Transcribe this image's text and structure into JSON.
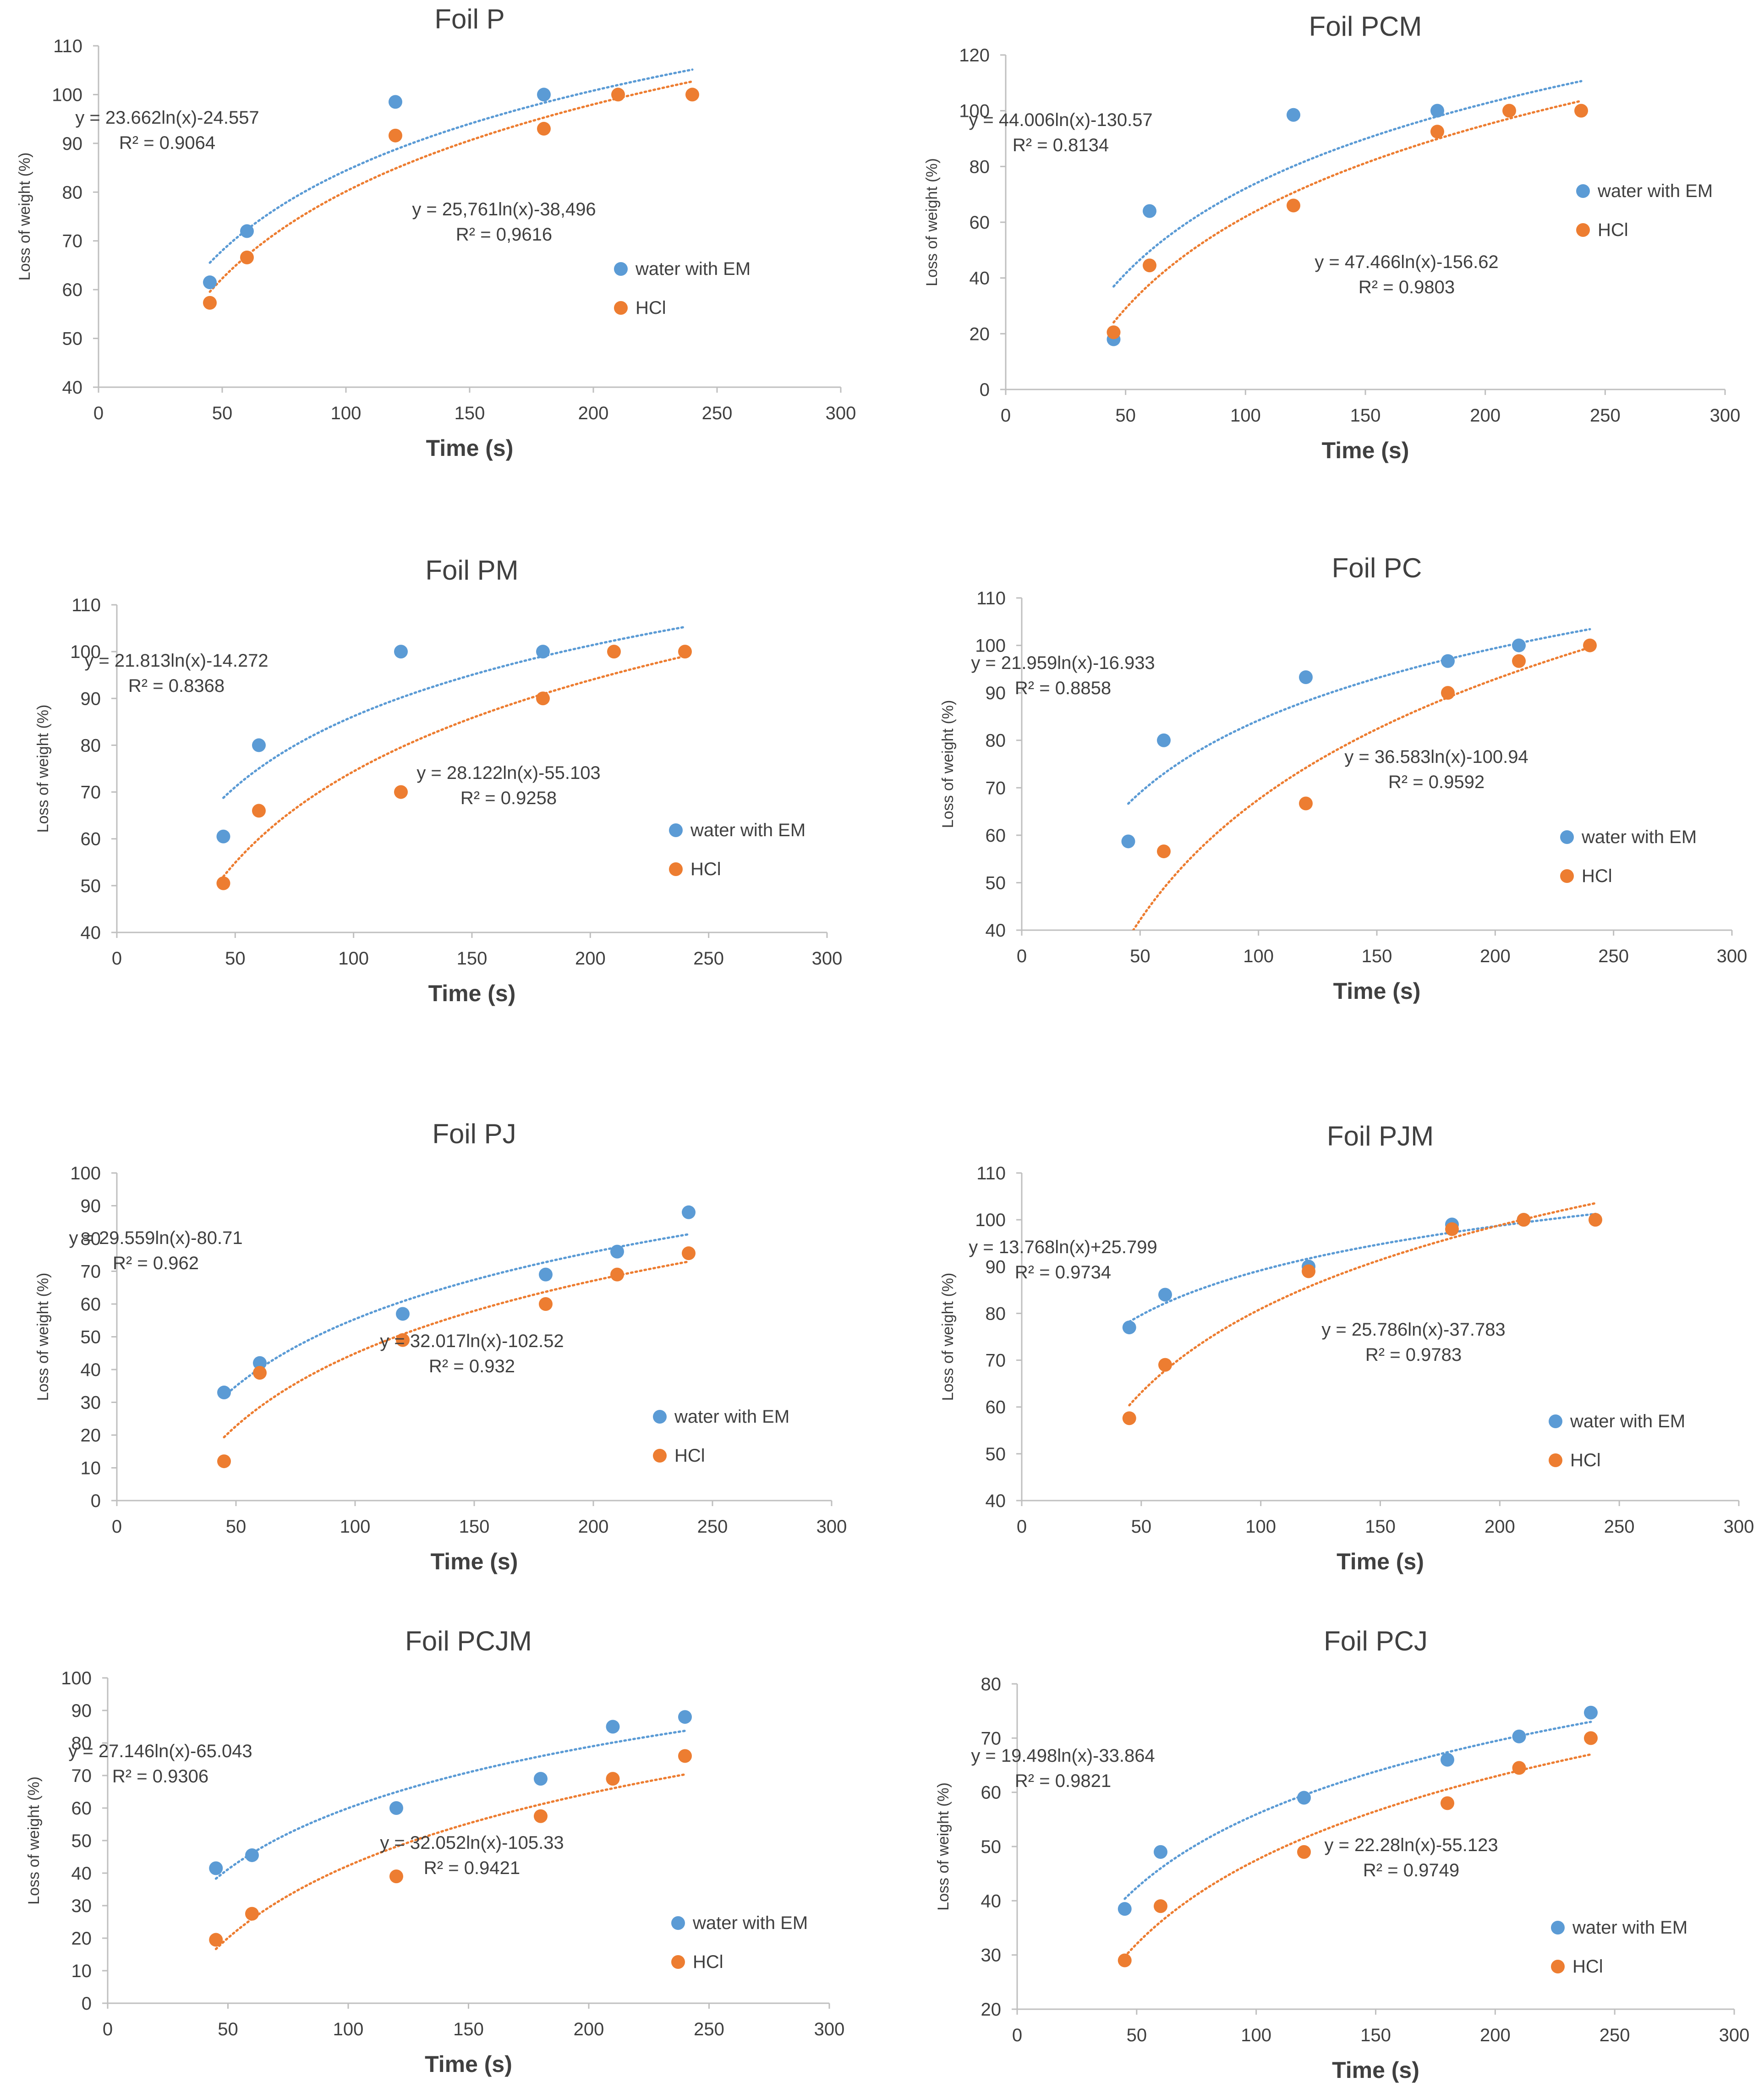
{
  "colors": {
    "water": "#5b9bd5",
    "hcl": "#ed7d31",
    "axis": "#bfbfbf",
    "text": "#404040"
  },
  "chart_data": [
    {
      "type": "scatter",
      "title": "Foil P",
      "xlabel": "Time (s)",
      "ylabel": "Loss of weight (%)",
      "xlim": [
        0,
        300
      ],
      "ylim": [
        40,
        110
      ],
      "xticks": [
        0,
        50,
        100,
        150,
        200,
        250,
        300
      ],
      "yticks": [
        40,
        50,
        60,
        70,
        80,
        90,
        100,
        110
      ],
      "legend": [
        "water with EM",
        "HCl"
      ],
      "series": [
        {
          "name": "water with EM",
          "x": [
            45,
            60,
            120,
            180
          ],
          "y": [
            61.5,
            72,
            98.5,
            100
          ],
          "fit": {
            "a": 23.662,
            "b": -24.557,
            "x0": 45,
            "x1": 240
          }
        },
        {
          "name": "HCl",
          "x": [
            45,
            60,
            120,
            180,
            210,
            240
          ],
          "y": [
            57.3,
            66.6,
            91.6,
            93,
            100,
            100
          ],
          "fit": {
            "a": 25.761,
            "b": -38.496,
            "x0": 45,
            "x1": 240
          }
        }
      ],
      "annotations": [
        {
          "line1": "y = 23.662ln(x)-24.557",
          "line2": "R² = 0.9064"
        },
        {
          "line1": "y = 25,761ln(x)-38,496",
          "line2": "R² = 0,9616"
        }
      ]
    },
    {
      "type": "scatter",
      "title": "Foil PCM",
      "xlabel": "Time (s)",
      "ylabel": "Loss of weight (%)",
      "xlim": [
        0,
        300
      ],
      "ylim": [
        0,
        120
      ],
      "xticks": [
        0,
        50,
        100,
        150,
        200,
        250,
        300
      ],
      "yticks": [
        0,
        20,
        40,
        60,
        80,
        100,
        120
      ],
      "legend": [
        "water with EM",
        "HCl"
      ],
      "series": [
        {
          "name": "water with EM",
          "x": [
            45,
            60,
            120,
            180
          ],
          "y": [
            18,
            64,
            98.5,
            100
          ],
          "fit": {
            "a": 44.006,
            "b": -130.57,
            "x0": 45,
            "x1": 240
          }
        },
        {
          "name": "HCl",
          "x": [
            45,
            60,
            120,
            180,
            210,
            240
          ],
          "y": [
            20.5,
            44.5,
            66,
            92.5,
            100,
            100
          ],
          "fit": {
            "a": 47.466,
            "b": -156.62,
            "x0": 45,
            "x1": 240
          }
        }
      ],
      "annotations": [
        {
          "line1": "y = 44.006ln(x)-130.57",
          "line2": "R² = 0.8134"
        },
        {
          "line1": "y = 47.466ln(x)-156.62",
          "line2": "R² = 0.9803"
        }
      ]
    },
    {
      "type": "scatter",
      "title": "Foil PM",
      "xlabel": "Time (s)",
      "ylabel": "Loss of weight (%)",
      "xlim": [
        0,
        300
      ],
      "ylim": [
        40,
        110
      ],
      "xticks": [
        0,
        50,
        100,
        150,
        200,
        250,
        300
      ],
      "yticks": [
        40,
        50,
        60,
        70,
        80,
        90,
        100,
        110
      ],
      "legend": [
        "water with EM",
        "HCl"
      ],
      "series": [
        {
          "name": "water with EM",
          "x": [
            45,
            60,
            120,
            180
          ],
          "y": [
            60.5,
            80,
            100,
            100
          ],
          "fit": {
            "a": 21.813,
            "b": -14.272,
            "x0": 45,
            "x1": 240
          }
        },
        {
          "name": "HCl",
          "x": [
            45,
            60,
            120,
            180,
            210,
            240
          ],
          "y": [
            50.5,
            66,
            70,
            90,
            100,
            100
          ],
          "fit": {
            "a": 28.122,
            "b": -55.103,
            "x0": 45,
            "x1": 240
          }
        }
      ],
      "annotations": [
        {
          "line1": "y = 21.813ln(x)-14.272",
          "line2": "R² = 0.8368"
        },
        {
          "line1": "y = 28.122ln(x)-55.103",
          "line2": "R² = 0.9258"
        }
      ]
    },
    {
      "type": "scatter",
      "title": "Foil PC",
      "xlabel": "Time (s)",
      "ylabel": "Loss of weight (%)",
      "xlim": [
        0,
        300
      ],
      "ylim": [
        40,
        110
      ],
      "xticks": [
        0,
        50,
        100,
        150,
        200,
        250,
        300
      ],
      "yticks": [
        40,
        50,
        60,
        70,
        80,
        90,
        100,
        110
      ],
      "legend": [
        "water with EM",
        "HCl"
      ],
      "series": [
        {
          "name": "water with EM",
          "x": [
            45,
            60,
            120,
            180,
            210
          ],
          "y": [
            58.7,
            80,
            93.3,
            96.7,
            100
          ],
          "fit": {
            "a": 21.959,
            "b": -16.933,
            "x0": 45,
            "x1": 240
          }
        },
        {
          "name": "HCl",
          "x": [
            60,
            120,
            180,
            210,
            240
          ],
          "y": [
            56.6,
            66.7,
            90,
            96.7,
            100
          ],
          "fit": {
            "a": 36.583,
            "b": -100.94,
            "x0": 45,
            "x1": 240
          }
        }
      ],
      "annotations": [
        {
          "line1": "y = 21.959ln(x)-16.933",
          "line2": "R² = 0.8858"
        },
        {
          "line1": "y = 36.583ln(x)-100.94",
          "line2": "R² = 0.9592"
        }
      ]
    },
    {
      "type": "scatter",
      "title": "Foil PJ",
      "xlabel": "Time (s)",
      "ylabel": "Loss of weight (%)",
      "xlim": [
        0,
        300
      ],
      "ylim": [
        0,
        100
      ],
      "xticks": [
        0,
        50,
        100,
        150,
        200,
        250,
        300
      ],
      "yticks": [
        0,
        10,
        20,
        30,
        40,
        50,
        60,
        70,
        80,
        90,
        100
      ],
      "legend": [
        "water with EM",
        "HCl"
      ],
      "series": [
        {
          "name": "water with EM",
          "x": [
            45,
            60,
            120,
            180,
            210,
            240
          ],
          "y": [
            33,
            42,
            57,
            69,
            76,
            88
          ],
          "fit": {
            "a": 29.559,
            "b": -80.71,
            "x0": 45,
            "x1": 240
          }
        },
        {
          "name": "HCl",
          "x": [
            45,
            60,
            120,
            180,
            210,
            240
          ],
          "y": [
            12,
            39,
            49,
            60,
            69,
            75.5
          ],
          "fit": {
            "a": 32.017,
            "b": -102.52,
            "x0": 45,
            "x1": 240
          }
        }
      ],
      "annotations": [
        {
          "line1": "y = 29.559ln(x)-80.71",
          "line2": "R² = 0.962"
        },
        {
          "line1": "y = 32.017ln(x)-102.52",
          "line2": "R² = 0.932"
        }
      ]
    },
    {
      "type": "scatter",
      "title": "Foil PJM",
      "xlabel": "Time (s)",
      "ylabel": "Loss of weight (%)",
      "xlim": [
        0,
        300
      ],
      "ylim": [
        40,
        110
      ],
      "xticks": [
        0,
        50,
        100,
        150,
        200,
        250,
        300
      ],
      "yticks": [
        40,
        50,
        60,
        70,
        80,
        90,
        100,
        110
      ],
      "legend": [
        "water with EM",
        "HCl"
      ],
      "series": [
        {
          "name": "water with EM",
          "x": [
            45,
            60,
            120,
            180,
            210
          ],
          "y": [
            77,
            84,
            90,
            99,
            100
          ],
          "fit": {
            "a": 13.768,
            "b": 25.799,
            "x0": 45,
            "x1": 240
          }
        },
        {
          "name": "HCl",
          "x": [
            45,
            60,
            120,
            180,
            210,
            240
          ],
          "y": [
            57.6,
            69,
            89,
            98,
            100,
            100
          ],
          "fit": {
            "a": 25.786,
            "b": -37.783,
            "x0": 45,
            "x1": 240
          }
        }
      ],
      "annotations": [
        {
          "line1": "y = 13.768ln(x)+25.799",
          "line2": "R² = 0.9734"
        },
        {
          "line1": "y = 25.786ln(x)-37.783",
          "line2": "R² = 0.9783"
        }
      ]
    },
    {
      "type": "scatter",
      "title": "Foil PCJM",
      "xlabel": "Time (s)",
      "ylabel": "Loss of weight (%)",
      "xlim": [
        0,
        300
      ],
      "ylim": [
        0,
        100
      ],
      "xticks": [
        0,
        50,
        100,
        150,
        200,
        250,
        300
      ],
      "yticks": [
        0,
        10,
        20,
        30,
        40,
        50,
        60,
        70,
        80,
        90,
        100
      ],
      "legend": [
        "water with EM",
        "HCl"
      ],
      "series": [
        {
          "name": "water with EM",
          "x": [
            45,
            60,
            120,
            180,
            210,
            240
          ],
          "y": [
            41.5,
            45.5,
            60,
            69,
            85,
            88
          ],
          "fit": {
            "a": 27.146,
            "b": -65.043,
            "x0": 45,
            "x1": 240
          }
        },
        {
          "name": "HCl",
          "x": [
            45,
            60,
            120,
            180,
            210,
            240
          ],
          "y": [
            19.5,
            27.5,
            39,
            57.5,
            69,
            76
          ],
          "fit": {
            "a": 32.052,
            "b": -105.33,
            "x0": 45,
            "x1": 240
          }
        }
      ],
      "annotations": [
        {
          "line1": "y = 27.146ln(x)-65.043",
          "line2": "R² = 0.9306"
        },
        {
          "line1": "y = 32.052ln(x)-105.33",
          "line2": "R² = 0.9421"
        }
      ]
    },
    {
      "type": "scatter",
      "title": "Foil PCJ",
      "xlabel": "Time (s)",
      "ylabel": "Loss of weight (%)",
      "xlim": [
        0,
        300
      ],
      "ylim": [
        20,
        80
      ],
      "xticks": [
        0,
        50,
        100,
        150,
        200,
        250,
        300
      ],
      "yticks": [
        20,
        30,
        40,
        50,
        60,
        70,
        80
      ],
      "legend": [
        "water with EM",
        "HCl"
      ],
      "series": [
        {
          "name": "water with EM",
          "x": [
            45,
            60,
            120,
            180,
            210,
            240
          ],
          "y": [
            38.5,
            49,
            59,
            66,
            70.3,
            74.7
          ],
          "fit": {
            "a": 19.498,
            "b": -33.864,
            "x0": 45,
            "x1": 240
          }
        },
        {
          "name": "HCl",
          "x": [
            45,
            60,
            120,
            180,
            210,
            240
          ],
          "y": [
            29,
            39,
            49,
            58,
            64.5,
            70
          ],
          "fit": {
            "a": 22.28,
            "b": -55.123,
            "x0": 45,
            "x1": 240
          }
        }
      ],
      "annotations": [
        {
          "line1": "y = 19.498ln(x)-33.864",
          "line2": "R² = 0.9821"
        },
        {
          "line1": "y = 22.28ln(x)-55.123",
          "line2": "R² = 0.9749"
        }
      ]
    }
  ]
}
